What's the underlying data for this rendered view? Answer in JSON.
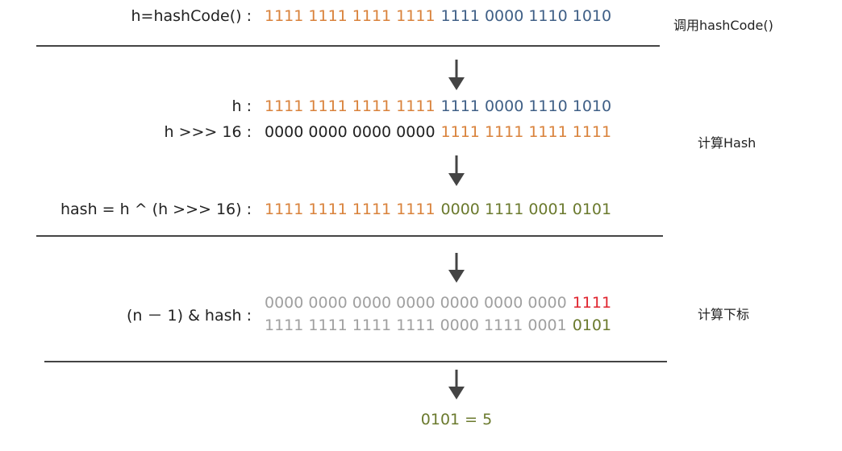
{
  "rows": [
    {
      "label": "h=hashCode() :",
      "segments": [
        {
          "text": "1111 1111 1111 1111",
          "color": "#d9823b"
        },
        {
          "text": "1111 0000 1110 1010",
          "color": "#3f5f86"
        }
      ]
    },
    {
      "label": "h :",
      "segments": [
        {
          "text": "1111 1111 1111 1111",
          "color": "#d9823b"
        },
        {
          "text": "1111 0000 1110 1010",
          "color": "#3f5f86"
        }
      ]
    },
    {
      "label": "h >>> 16 :",
      "segments": [
        {
          "text": "0000 0000 0000 0000",
          "color": "#222222"
        },
        {
          "text": "1111 1111 1111 1111",
          "color": "#d9823b"
        }
      ]
    },
    {
      "label": "hash = h ^ (h >>> 16) :",
      "segments": [
        {
          "text": "1111 1111 1111 1111",
          "color": "#d9823b"
        },
        {
          "text": "0000 1111 0001 0101",
          "color": "#6b7a2e"
        }
      ]
    },
    {
      "label": "(n － 1) & hash :",
      "segments": [
        {
          "text": "0000 0000 0000 0000 0000 0000 0000",
          "color": "#a0a0a0"
        },
        {
          "text": "1111",
          "color": "#e0242e"
        }
      ]
    },
    {
      "label": null,
      "segments": [
        {
          "text": "1111 1111 1111 1111 0000 1111 0001",
          "color": "#a0a0a0"
        },
        {
          "text": "0101",
          "color": "#6b7a2e"
        }
      ]
    }
  ],
  "side_labels": [
    "调用hashCode()",
    "计算Hash",
    "计算下标"
  ],
  "result": {
    "text": "0101 = 5",
    "color": "#6b7a2e"
  }
}
